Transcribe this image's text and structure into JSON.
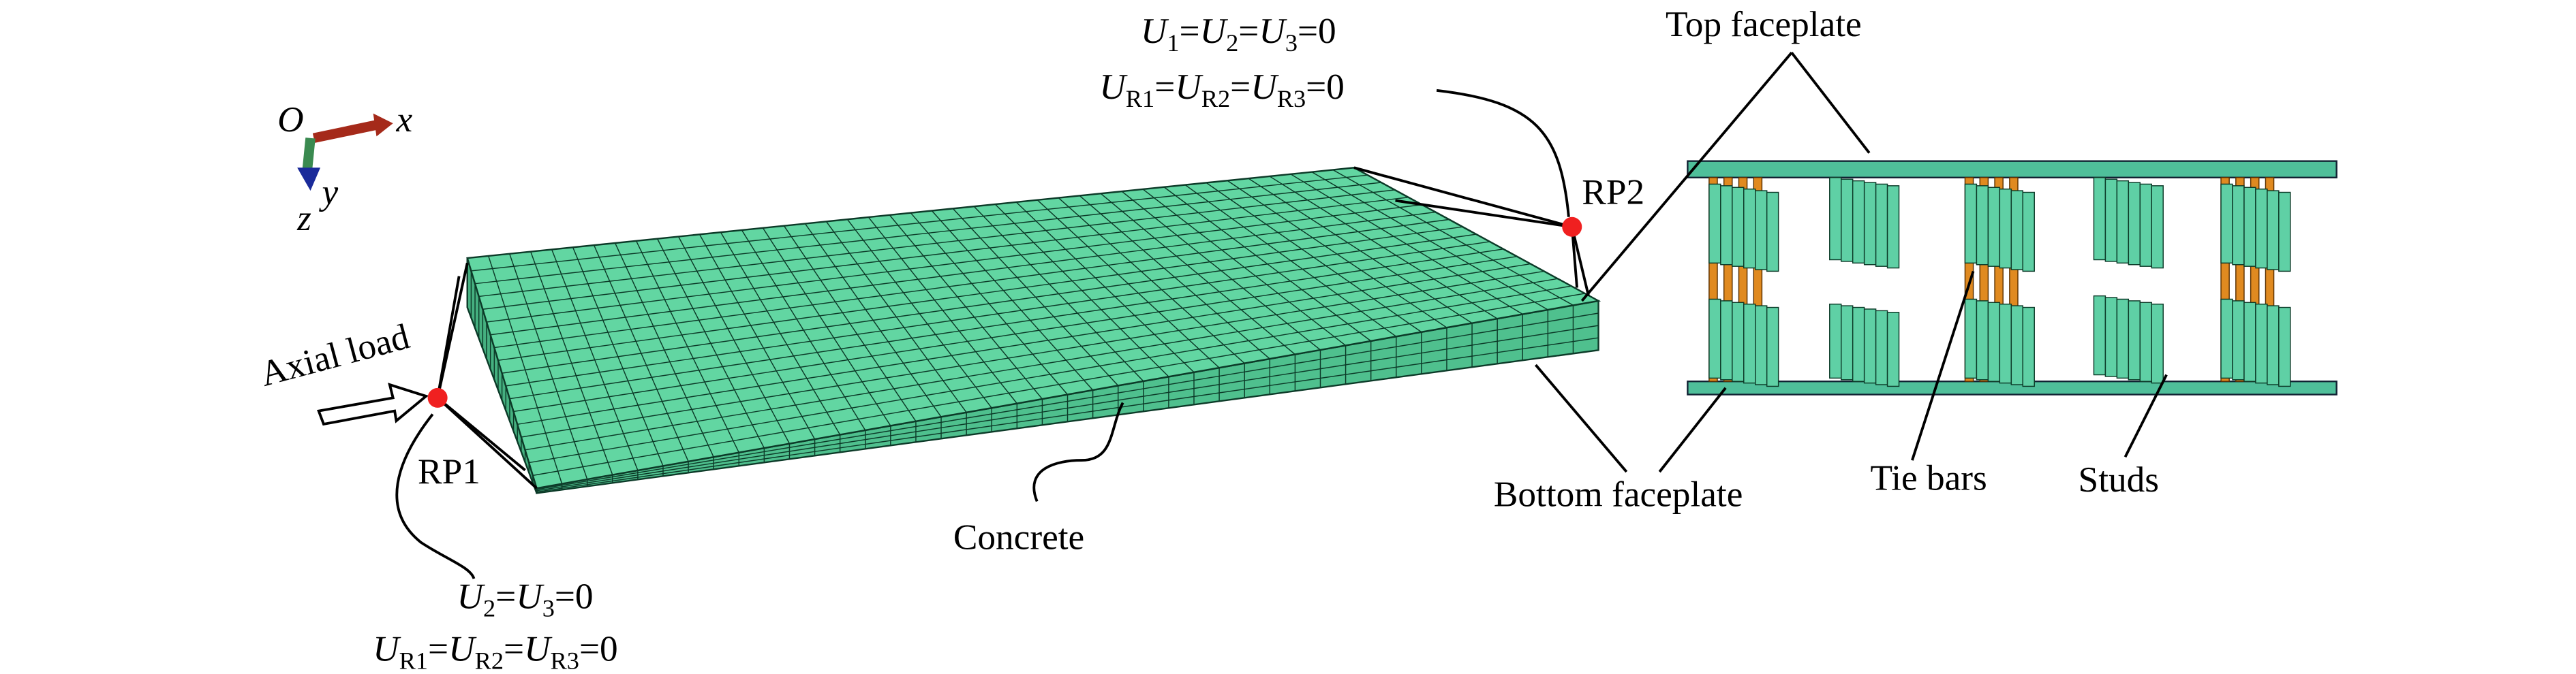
{
  "axes": {
    "origin": "O",
    "x": "x",
    "y": "y",
    "z": "z"
  },
  "labels": {
    "axial_load": "Axial load",
    "rp1": "RP1",
    "rp2": "RP2",
    "concrete": "Concrete",
    "bottom_faceplate": "Bottom faceplate",
    "top_faceplate": "Top faceplate",
    "tie_bars": "Tie bars",
    "studs": "Studs"
  },
  "boundary_conditions": {
    "rp2": [
      [
        {
          "t": "U",
          "italic": true
        },
        {
          "t": "1",
          "sub": true
        },
        {
          "t": "="
        },
        {
          "t": "U",
          "italic": true
        },
        {
          "t": "2",
          "sub": true
        },
        {
          "t": "="
        },
        {
          "t": "U",
          "italic": true
        },
        {
          "t": "3",
          "sub": true
        },
        {
          "t": "=0"
        }
      ],
      [
        {
          "t": "U",
          "italic": true
        },
        {
          "t": "R1",
          "sub": true
        },
        {
          "t": "="
        },
        {
          "t": "U",
          "italic": true
        },
        {
          "t": "R2",
          "sub": true
        },
        {
          "t": "="
        },
        {
          "t": "U",
          "italic": true
        },
        {
          "t": "R3",
          "sub": true
        },
        {
          "t": "=0"
        }
      ]
    ],
    "rp1": [
      [
        {
          "t": "U",
          "italic": true
        },
        {
          "t": "2",
          "sub": true
        },
        {
          "t": "="
        },
        {
          "t": "U",
          "italic": true
        },
        {
          "t": "3",
          "sub": true
        },
        {
          "t": "=0"
        }
      ],
      [
        {
          "t": "U",
          "italic": true
        },
        {
          "t": "R1",
          "sub": true
        },
        {
          "t": "="
        },
        {
          "t": "U",
          "italic": true
        },
        {
          "t": "R2",
          "sub": true
        },
        {
          "t": "="
        },
        {
          "t": "U",
          "italic": true
        },
        {
          "t": "R3",
          "sub": true
        },
        {
          "t": "=0"
        }
      ]
    ]
  }
}
